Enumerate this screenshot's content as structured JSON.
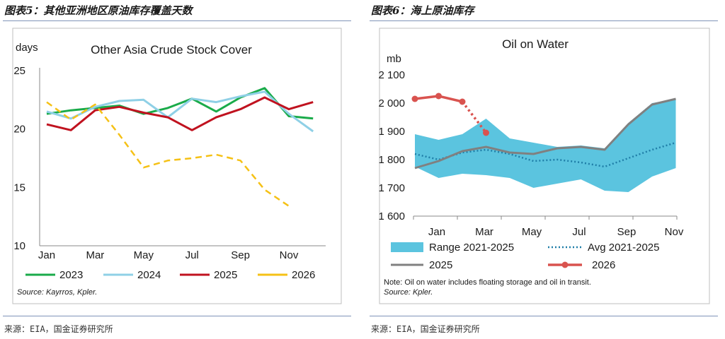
{
  "left_panel": {
    "header": "图表5：其他亚洲地区原油库存覆盖天数",
    "source_cn": "来源：EIA，国金证券研究所"
  },
  "right_panel": {
    "header": "图表6：海上原油库存",
    "source_cn": "来源：EIA，国金证券研究所"
  },
  "chart_data": [
    {
      "type": "line",
      "title": "Other Asia Crude Stock Cover",
      "ylabel": "days",
      "ylim": [
        10,
        25
      ],
      "yticks": [
        "10",
        "15",
        "20",
        "25"
      ],
      "categories": [
        "Jan",
        "Feb",
        "Mar",
        "Apr",
        "May",
        "Jun",
        "Jul",
        "Aug",
        "Sep",
        "Oct",
        "Nov",
        "Dec"
      ],
      "xtick_labels": [
        "Jan",
        "Mar",
        "May",
        "Jul",
        "Sep",
        "Nov"
      ],
      "grid": false,
      "legend_placement": "bottom",
      "source": "Source: Kayrros, Kpler.",
      "series": [
        {
          "name": "2023",
          "color": "#1aab4a",
          "style": "solid",
          "values": [
            21.3,
            21.6,
            21.8,
            22.0,
            21.3,
            21.8,
            22.6,
            21.5,
            22.7,
            23.5,
            21.1,
            20.9
          ]
        },
        {
          "name": "2024",
          "color": "#8fd0e6",
          "style": "solid",
          "values": [
            21.5,
            20.9,
            21.9,
            22.4,
            22.5,
            21.0,
            22.6,
            22.3,
            22.8,
            23.2,
            21.3,
            19.8
          ]
        },
        {
          "name": "2025",
          "color": "#c0121f",
          "style": "solid",
          "values": [
            20.4,
            19.9,
            21.6,
            21.9,
            21.4,
            21.0,
            19.9,
            21.0,
            21.7,
            22.7,
            21.7,
            22.3
          ]
        },
        {
          "name": "2026",
          "color": "#f5c116",
          "style": "dashed",
          "values": [
            22.3,
            20.8,
            22.1,
            19.5,
            16.7,
            17.3,
            17.5,
            17.8,
            17.3,
            14.8,
            13.4,
            null
          ]
        }
      ]
    },
    {
      "type": "line",
      "title": "Oil on Water",
      "ylabel": "mb",
      "ylim": [
        1600,
        2100
      ],
      "yticks": [
        "1 600",
        "1 700",
        "1 800",
        "1 900",
        "2 000",
        "2 100"
      ],
      "categories": [
        "Jan",
        "Feb",
        "Mar",
        "Apr",
        "May",
        "Jun",
        "Jul",
        "Aug",
        "Sep",
        "Oct",
        "Nov",
        "Dec"
      ],
      "xtick_labels": [
        "Jan",
        "Mar",
        "May",
        "Jul",
        "Sep",
        "Nov"
      ],
      "grid": false,
      "legend_placement": "bottom",
      "note": "Note: Oil on water includes floating storage and oil in transit.",
      "source": "Source: Kpler.",
      "range_band": {
        "name": "Range 2021-2025",
        "color": "#5bc4df",
        "low": [
          1775,
          1735,
          1750,
          1745,
          1735,
          1700,
          1715,
          1730,
          1690,
          1685,
          1740,
          1770
        ],
        "high": [
          1890,
          1870,
          1890,
          1945,
          1875,
          1860,
          1845,
          1850,
          1840,
          1930,
          2000,
          2015
        ]
      },
      "series": [
        {
          "name": "Avg 2021-2025",
          "color": "#1f7ea8",
          "style": "dotted",
          "values": [
            1820,
            1800,
            1825,
            1835,
            1820,
            1795,
            1800,
            1790,
            1775,
            1805,
            1835,
            1860
          ]
        },
        {
          "name": "2025",
          "color": "#808080",
          "style": "solid",
          "values": [
            1770,
            1795,
            1830,
            1845,
            1825,
            1820,
            1840,
            1845,
            1835,
            1925,
            1995,
            2015
          ]
        },
        {
          "name": "2026",
          "color": "#d9534f",
          "style": "solid-then-dotted",
          "values": [
            2015,
            2025,
            2005,
            1895,
            null,
            null,
            null,
            null,
            null,
            null,
            null,
            null
          ]
        }
      ]
    }
  ]
}
